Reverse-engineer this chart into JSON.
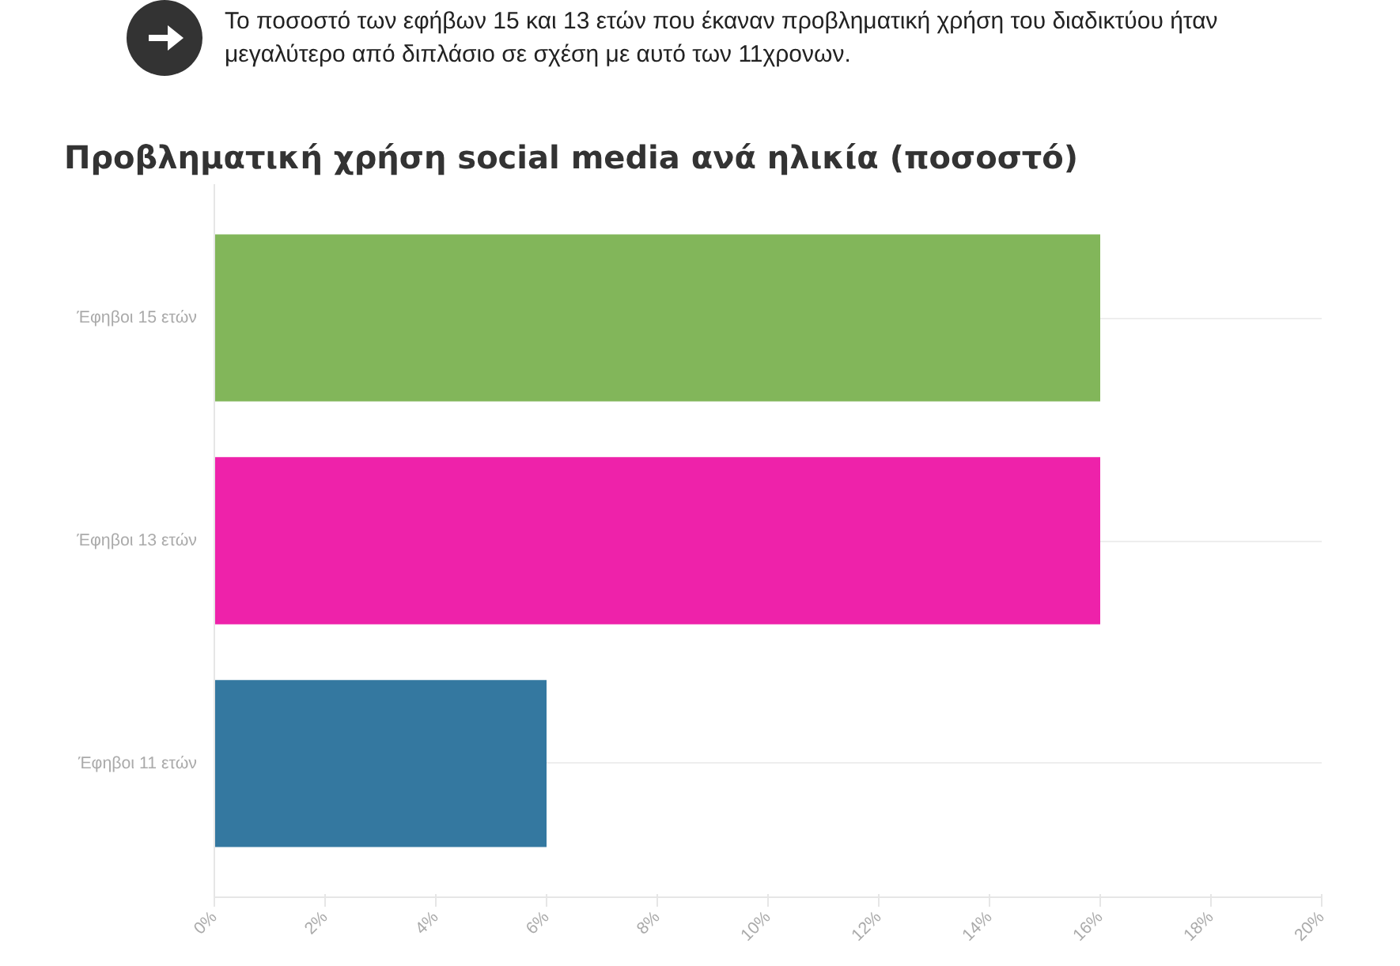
{
  "chart_data": {
    "type": "bar",
    "orientation": "horizontal",
    "title": "Προβληματική χρήση social media ανά ηλικία (ποσοστό)",
    "annotations": [
      "Το ποσοστό των εφήβων 15 και 13 ετών που έκαναν προβληματική χρήση του διαδικτύου ήταν μεγαλύτερο από διπλάσιο σε σχέση με αυτό των 11χρονων."
    ],
    "categories": [
      "Έφηβοι 15 ετών",
      "Έφηβοι 13 ετών",
      "Έφηβοι 11 ετών"
    ],
    "values": [
      16,
      16,
      6
    ],
    "colors": [
      "#82b65a",
      "#ee22aa",
      "#3478a0"
    ],
    "xlim": [
      0,
      20
    ],
    "xticks": [
      {
        "value": 0,
        "label": "0%"
      },
      {
        "value": 2,
        "label": "2%"
      },
      {
        "value": 4,
        "label": "4%"
      },
      {
        "value": 6,
        "label": "6%"
      },
      {
        "value": 8,
        "label": "8%"
      },
      {
        "value": 10,
        "label": "10%"
      },
      {
        "value": 12,
        "label": "12%"
      },
      {
        "value": 14,
        "label": "14%"
      },
      {
        "value": 16,
        "label": "16%"
      },
      {
        "value": 18,
        "label": "18%"
      },
      {
        "value": 20,
        "label": "20%"
      }
    ],
    "grid": "y"
  }
}
